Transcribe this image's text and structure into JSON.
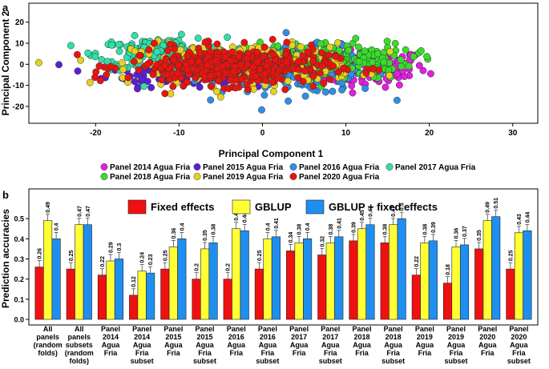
{
  "chart_data": [
    {
      "type": "scatter",
      "panel_label": "a",
      "xlabel": "Principal Component 1",
      "ylabel": "Principal Component 2",
      "xlim": [
        -28,
        33
      ],
      "ylim": [
        -28,
        29
      ],
      "xticks": [
        -20,
        -10,
        0,
        10,
        20,
        30
      ],
      "yticks": [
        -20,
        -10,
        0,
        10,
        20
      ],
      "series": [
        {
          "name": "Panel 2014 Agua Fria",
          "color": "#e01fe0",
          "cluster": {
            "cx": 12,
            "cy": -2,
            "sx": 7,
            "sy": 8,
            "n": 140
          }
        },
        {
          "name": "Panel 2015 Agua Fria",
          "color": "#5a1fd6",
          "cluster": {
            "cx": -11,
            "cy": -4,
            "sx": 7,
            "sy": 6,
            "n": 110
          }
        },
        {
          "name": "Panel 2016 Agua Fria",
          "color": "#2f8fe8",
          "cluster": {
            "cx": 5,
            "cy": -3,
            "sx": 9,
            "sy": 10,
            "n": 200
          }
        },
        {
          "name": "Panel 2017 Agua Fria",
          "color": "#30e0a8",
          "cluster": {
            "cx": -12,
            "cy": 5,
            "sx": 7,
            "sy": 7,
            "n": 200
          }
        },
        {
          "name": "Panel 2018 Agua Fria",
          "color": "#3adc2a",
          "cluster": {
            "cx": 8,
            "cy": 2,
            "sx": 9,
            "sy": 8,
            "n": 200
          }
        },
        {
          "name": "Panel 2019 Agua Fria",
          "color": "#e6d21e",
          "cluster": {
            "cx": -2,
            "cy": 0,
            "sx": 12,
            "sy": 9,
            "n": 250
          }
        },
        {
          "name": "Panel 2020 Agua Fria",
          "color": "#e8140f",
          "cluster": {
            "cx": -4,
            "cy": -1,
            "sx": 11,
            "sy": 8,
            "n": 420
          }
        }
      ]
    },
    {
      "type": "bar",
      "panel_label": "b",
      "ylabel": "Prediction accuracies",
      "ylim": [
        0,
        0.6
      ],
      "yticks": [
        "0.0",
        "0.1",
        "0.2",
        "0.3",
        "0.4",
        "0.5"
      ],
      "categories": [
        [
          "All",
          "panels",
          "(random",
          "folds)"
        ],
        [
          "All",
          "panels",
          "subsets",
          "(random",
          "folds)"
        ],
        [
          "Panel",
          "2014",
          "Agua",
          "Fria"
        ],
        [
          "Panel",
          "2014",
          "Agua",
          "Fria",
          "subset"
        ],
        [
          "Panel",
          "2015",
          "Agua",
          "Fria"
        ],
        [
          "Panel",
          "2015",
          "Agua",
          "Fria",
          "subset"
        ],
        [
          "Panel",
          "2016",
          "Agua",
          "Fria"
        ],
        [
          "Panel",
          "2016",
          "Agua",
          "Fria",
          "subset"
        ],
        [
          "Panel",
          "2017",
          "Agua",
          "Fria"
        ],
        [
          "Panel",
          "2017",
          "Agua",
          "Fria",
          "subset"
        ],
        [
          "Panel",
          "2018",
          "Agua",
          "Fria"
        ],
        [
          "Panel",
          "2018",
          "Agua",
          "Fria",
          "subset"
        ],
        [
          "Panel",
          "2019",
          "Agua",
          "Fria"
        ],
        [
          "Panel",
          "2019",
          "Agua",
          "Fria",
          "subset"
        ],
        [
          "Panel",
          "2020",
          "Agua",
          "Fria"
        ],
        [
          "Panel",
          "2020",
          "Agua",
          "Fria",
          "subset"
        ]
      ],
      "series": [
        {
          "name": "Fixed effects",
          "color": "#f01010",
          "values": [
            0.26,
            0.25,
            0.22,
            0.12,
            0.25,
            0.2,
            0.2,
            0.25,
            0.34,
            0.32,
            0.39,
            0.38,
            0.22,
            0.18,
            0.35,
            0.25
          ]
        },
        {
          "name": "GBLUP",
          "color": "#ffff33",
          "values": [
            0.49,
            0.47,
            0.29,
            0.24,
            0.36,
            0.35,
            0.45,
            0.4,
            0.38,
            0.38,
            0.45,
            0.47,
            0.38,
            0.36,
            0.49,
            0.43
          ]
        },
        {
          "name": "GBLUP + fixed effects",
          "color": "#1e8ff0",
          "values": [
            0.4,
            0.47,
            0.3,
            0.23,
            0.4,
            0.38,
            0.44,
            0.41,
            0.4,
            0.41,
            0.47,
            0.5,
            0.39,
            0.37,
            0.51,
            0.44
          ]
        }
      ]
    }
  ]
}
